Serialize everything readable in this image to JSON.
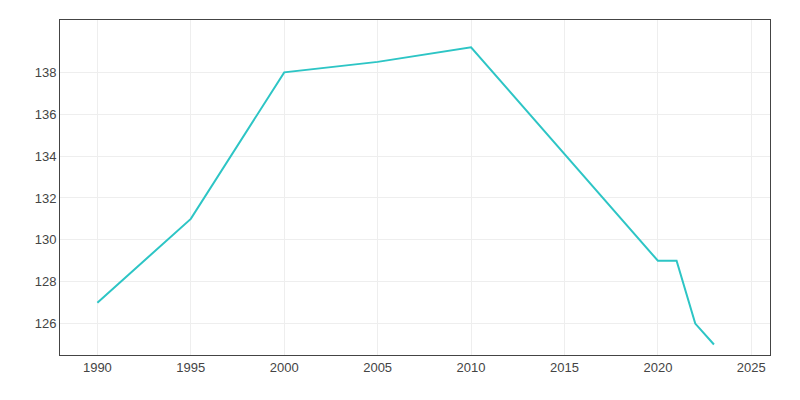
{
  "chart_data": {
    "type": "line",
    "x": [
      1990,
      1995,
      2000,
      2005,
      2010,
      2020,
      2021,
      2022,
      2023
    ],
    "values": [
      127,
      131,
      138,
      138.5,
      139.2,
      129,
      129,
      126,
      125
    ],
    "color": "#2dc5c5",
    "xlim": [
      1988,
      2026
    ],
    "ylim": [
      124.5,
      140.5
    ],
    "xticks": [
      1990,
      1995,
      2000,
      2005,
      2010,
      2015,
      2020,
      2025
    ],
    "yticks": [
      126,
      128,
      130,
      132,
      134,
      136,
      138
    ],
    "grid": true
  }
}
